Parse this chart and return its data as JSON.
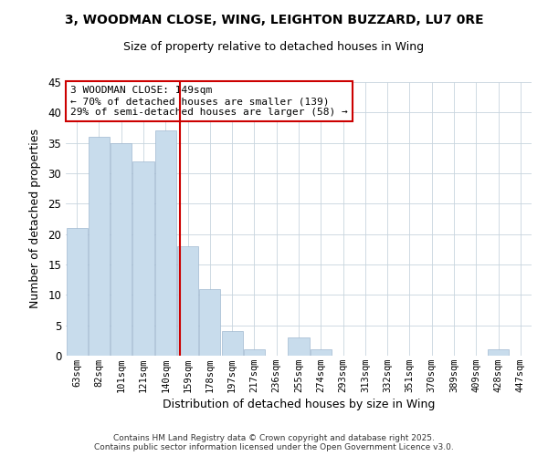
{
  "title": "3, WOODMAN CLOSE, WING, LEIGHTON BUZZARD, LU7 0RE",
  "subtitle": "Size of property relative to detached houses in Wing",
  "xlabel": "Distribution of detached houses by size in Wing",
  "ylabel": "Number of detached properties",
  "bar_color": "#c8dcec",
  "bar_edge_color": "#a0b8d0",
  "background_color": "#ffffff",
  "grid_color": "#c8d4de",
  "categories": [
    "63sqm",
    "82sqm",
    "101sqm",
    "121sqm",
    "140sqm",
    "159sqm",
    "178sqm",
    "197sqm",
    "217sqm",
    "236sqm",
    "255sqm",
    "274sqm",
    "293sqm",
    "313sqm",
    "332sqm",
    "351sqm",
    "370sqm",
    "389sqm",
    "409sqm",
    "428sqm",
    "447sqm"
  ],
  "values": [
    21,
    36,
    35,
    32,
    37,
    18,
    11,
    4,
    1,
    0,
    3,
    1,
    0,
    0,
    0,
    0,
    0,
    0,
    0,
    1,
    0
  ],
  "ylim": [
    0,
    45
  ],
  "yticks": [
    0,
    5,
    10,
    15,
    20,
    25,
    30,
    35,
    40,
    45
  ],
  "vline_x": 4.63,
  "vline_color": "#cc0000",
  "annotation_line1": "3 WOODMAN CLOSE: 149sqm",
  "annotation_line2": "← 70% of detached houses are smaller (139)",
  "annotation_line3": "29% of semi-detached houses are larger (58) →",
  "annotation_box_color": "#ffffff",
  "annotation_box_edge": "#cc0000",
  "footer_line1": "Contains HM Land Registry data © Crown copyright and database right 2025.",
  "footer_line2": "Contains public sector information licensed under the Open Government Licence v3.0."
}
